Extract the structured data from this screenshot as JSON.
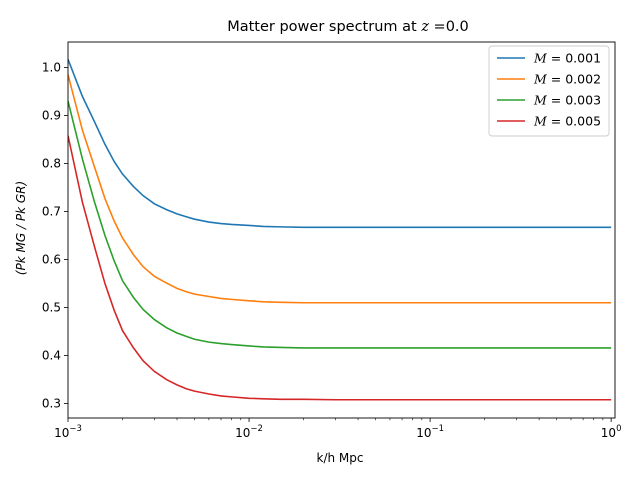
{
  "chart_data": {
    "type": "line",
    "title": "Matter power spectrum at z =0.0",
    "title_parts": {
      "prefix": "Matter power spectrum at ",
      "var": "z",
      "suffix": " =0.0"
    },
    "xlabel": "k/h Mpc",
    "ylabel": "(Pk MG / Pk GR)",
    "xscale": "log",
    "xlim": [
      0.001,
      1.05
    ],
    "ylim": [
      0.27,
      1.053
    ],
    "xticks": [
      {
        "value": 0.001,
        "base": "10",
        "exp": "−3"
      },
      {
        "value": 0.01,
        "base": "10",
        "exp": "−2"
      },
      {
        "value": 0.1,
        "base": "10",
        "exp": "−1"
      },
      {
        "value": 1,
        "base": "10",
        "exp": "0"
      }
    ],
    "yticks": [
      {
        "value": 0.3,
        "label": "0.3"
      },
      {
        "value": 0.4,
        "label": "0.4"
      },
      {
        "value": 0.5,
        "label": "0.5"
      },
      {
        "value": 0.6,
        "label": "0.6"
      },
      {
        "value": 0.7,
        "label": "0.7"
      },
      {
        "value": 0.8,
        "label": "0.8"
      },
      {
        "value": 0.9,
        "label": "0.9"
      },
      {
        "value": 1.0,
        "label": "1.0"
      }
    ],
    "grid": false,
    "legend_position": "top-right",
    "x": [
      0.001,
      0.0012,
      0.0014,
      0.0016,
      0.0018,
      0.002,
      0.0023,
      0.0026,
      0.003,
      0.0035,
      0.004,
      0.0045,
      0.005,
      0.006,
      0.007,
      0.008,
      0.01,
      0.012,
      0.015,
      0.02,
      0.03,
      0.05,
      0.1,
      0.3,
      1.0
    ],
    "series": [
      {
        "name": "M = 0.001",
        "var": "M",
        "value_label": " = 0.001",
        "color": "#1f77b4",
        "values": [
          1.017,
          0.94,
          0.887,
          0.84,
          0.804,
          0.778,
          0.752,
          0.733,
          0.716,
          0.704,
          0.695,
          0.689,
          0.684,
          0.678,
          0.675,
          0.673,
          0.671,
          0.669,
          0.668,
          0.667,
          0.667,
          0.667,
          0.667,
          0.667,
          0.667
        ]
      },
      {
        "name": "M = 0.002",
        "var": "M",
        "value_label": " = 0.002",
        "color": "#ff7f0e",
        "values": [
          0.985,
          0.87,
          0.793,
          0.727,
          0.68,
          0.645,
          0.61,
          0.585,
          0.565,
          0.551,
          0.54,
          0.533,
          0.528,
          0.523,
          0.519,
          0.517,
          0.514,
          0.512,
          0.511,
          0.51,
          0.51,
          0.51,
          0.51,
          0.51,
          0.51
        ]
      },
      {
        "name": "M = 0.003",
        "var": "M",
        "value_label": " = 0.003",
        "color": "#2ca02c",
        "values": [
          0.93,
          0.81,
          0.72,
          0.65,
          0.597,
          0.556,
          0.521,
          0.496,
          0.475,
          0.458,
          0.447,
          0.44,
          0.434,
          0.428,
          0.425,
          0.423,
          0.42,
          0.418,
          0.417,
          0.416,
          0.416,
          0.416,
          0.416,
          0.416,
          0.416
        ]
      },
      {
        "name": "M = 0.005",
        "var": "M",
        "value_label": " = 0.005",
        "color": "#d62728",
        "values": [
          0.858,
          0.72,
          0.627,
          0.55,
          0.494,
          0.452,
          0.416,
          0.389,
          0.367,
          0.35,
          0.339,
          0.331,
          0.326,
          0.32,
          0.316,
          0.314,
          0.311,
          0.31,
          0.309,
          0.309,
          0.308,
          0.308,
          0.308,
          0.308,
          0.308
        ]
      }
    ]
  }
}
